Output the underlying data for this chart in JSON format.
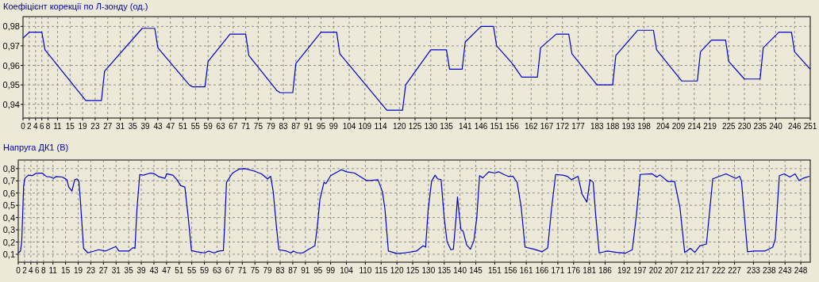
{
  "chart_data": [
    {
      "type": "line",
      "title": "Коефіцієнт корекції по Л-зонду (од.)",
      "grid": true,
      "xlim": [
        0,
        251
      ],
      "ylim": [
        0.933,
        0.985
      ],
      "xticks": [
        0,
        2,
        4,
        6,
        8,
        11,
        15,
        19,
        23,
        27,
        31,
        35,
        39,
        43,
        47,
        51,
        55,
        59,
        63,
        67,
        71,
        75,
        79,
        83,
        87,
        91,
        95,
        99,
        104,
        109,
        114,
        120,
        125,
        130,
        135,
        141,
        146,
        151,
        156,
        162,
        167,
        172,
        177,
        183,
        188,
        193,
        198,
        204,
        209,
        214,
        219,
        225,
        230,
        235,
        240,
        246,
        251
      ],
      "yticks": [
        {
          "value": 0.94,
          "label": "0,94"
        },
        {
          "value": 0.95,
          "label": "0,95"
        },
        {
          "value": 0.96,
          "label": "0,96"
        },
        {
          "value": 0.97,
          "label": "0,97"
        },
        {
          "value": 0.98,
          "label": "0,98"
        }
      ],
      "series": [
        {
          "color": "#0000cc",
          "x": [
            0,
            2,
            6,
            7,
            20,
            25,
            26,
            38,
            42,
            43,
            53,
            54,
            58,
            59,
            66,
            71,
            72,
            81,
            82,
            86,
            87,
            95,
            100,
            101,
            116,
            121,
            122,
            130,
            135,
            136,
            140,
            141,
            146,
            150,
            151,
            156,
            159,
            160,
            164,
            165,
            170,
            174,
            175,
            183,
            188,
            189,
            196,
            201,
            202,
            210,
            215,
            216,
            219.5,
            224,
            225,
            230,
            235,
            236,
            241,
            245,
            246,
            251
          ],
          "values": [
            0.974,
            0.977,
            0.977,
            0.968,
            0.942,
            0.942,
            0.957,
            0.979,
            0.979,
            0.969,
            0.95,
            0.949,
            0.949,
            0.962,
            0.976,
            0.976,
            0.965,
            0.947,
            0.946,
            0.946,
            0.961,
            0.977,
            0.977,
            0.966,
            0.937,
            0.937,
            0.95,
            0.968,
            0.968,
            0.958,
            0.958,
            0.972,
            0.98,
            0.98,
            0.97,
            0.961,
            0.954,
            0.954,
            0.954,
            0.969,
            0.976,
            0.976,
            0.966,
            0.95,
            0.95,
            0.965,
            0.978,
            0.978,
            0.968,
            0.952,
            0.952,
            0.967,
            0.973,
            0.973,
            0.962,
            0.953,
            0.953,
            0.969,
            0.977,
            0.977,
            0.967,
            0.958
          ]
        }
      ]
    },
    {
      "type": "line",
      "title": "Напруга ДК1 (В)",
      "grid": true,
      "xlim": [
        0,
        251
      ],
      "ylim": [
        0.035,
        0.87
      ],
      "xticks": [
        0,
        2,
        4,
        6,
        8,
        11,
        15,
        19,
        23,
        27,
        31,
        35,
        39,
        43,
        47,
        51,
        55,
        59,
        63,
        67,
        71,
        75,
        79,
        83,
        87,
        91,
        95,
        99,
        104,
        110,
        115,
        120,
        125,
        130,
        135,
        140,
        145,
        151,
        156,
        161,
        166,
        171,
        176,
        181,
        186,
        192,
        197,
        202,
        207,
        212,
        217,
        222,
        227,
        233,
        238,
        243,
        248
      ],
      "yticks": [
        {
          "value": 0.1,
          "label": "0,1"
        },
        {
          "value": 0.2,
          "label": "0,2"
        },
        {
          "value": 0.3,
          "label": "0,3"
        },
        {
          "value": 0.4,
          "label": "0,4"
        },
        {
          "value": 0.5,
          "label": "0,5"
        },
        {
          "value": 0.6,
          "label": "0,6"
        },
        {
          "value": 0.7,
          "label": "0,7"
        },
        {
          "value": 0.8,
          "label": "0,8"
        }
      ],
      "series": [
        {
          "color": "#0000cc",
          "x": [
            0,
            0.7,
            1.1,
            1.7,
            2.1,
            3.2,
            4.5,
            5.7,
            7.6,
            8.9,
            10.3,
            11.2,
            12,
            14,
            15.4,
            16,
            17,
            17.9,
            18.6,
            19.2,
            19.7,
            20.7,
            22.1,
            25.5,
            27.6,
            30.9,
            31.9,
            35,
            36.4,
            37,
            37.6,
            38.5,
            39.7,
            41.8,
            43.1,
            44.4,
            46.5,
            47,
            49,
            50.3,
            51.5,
            52.8,
            53.8,
            54.9,
            56.6,
            59,
            60.3,
            62,
            63.7,
            65,
            65.4,
            66,
            67.9,
            70,
            71.9,
            74.6,
            77.1,
            79,
            80,
            80.8,
            81.8,
            82.6,
            85,
            86.4,
            87.2,
            88.5,
            90.2,
            91.8,
            94,
            94.8,
            95.6,
            96.9,
            97.5,
            99,
            102.4,
            104,
            106.6,
            108.2,
            110.3,
            111.6,
            114,
            115.4,
            116.2,
            117.3,
            120,
            122.5,
            126.2,
            128.3,
            129.1,
            129.9,
            131,
            132.1,
            132.9,
            134,
            135,
            135.9,
            137.1,
            137.9,
            138.8,
            139.2,
            139.6,
            140.3,
            141,
            142.1,
            143.3,
            144.4,
            145.3,
            146.2,
            147.2,
            149.1,
            151,
            152.2,
            153.9,
            155.2,
            156.8,
            158.1,
            159.4,
            160.6,
            163.5,
            166,
            167.8,
            169,
            170.3,
            172.6,
            174,
            175.3,
            177.4,
            178.7,
            180.2,
            181.2,
            182.2,
            183,
            184.1,
            186.7,
            189.6,
            192.5,
            194.6,
            195.9,
            197.1,
            200.9,
            202.3,
            203.4,
            205.9,
            208,
            209.7,
            211.2,
            213,
            214.4,
            216,
            218.1,
            220.1,
            221.6,
            224.3,
            227.4,
            228.6,
            229.2,
            231.1,
            233.2,
            236.6,
            239.1,
            239.9,
            241.2,
            242.8,
            244.5,
            246.2,
            247.4,
            248.7,
            250.8
          ],
          "values": [
            0.111,
            0.126,
            0.2,
            0.655,
            0.72,
            0.746,
            0.742,
            0.763,
            0.763,
            0.735,
            0.731,
            0.72,
            0.735,
            0.731,
            0.709,
            0.649,
            0.616,
            0.709,
            0.716,
            0.698,
            0.536,
            0.148,
            0.111,
            0.137,
            0.126,
            0.163,
            0.126,
            0.126,
            0.154,
            0.148,
            0.461,
            0.752,
            0.746,
            0.763,
            0.759,
            0.735,
            0.72,
            0.757,
            0.746,
            0.709,
            0.66,
            0.649,
            0.418,
            0.13,
            0.12,
            0.111,
            0.126,
            0.111,
            0.126,
            0.13,
            0.331,
            0.688,
            0.763,
            0.796,
            0.8,
            0.781,
            0.757,
            0.716,
            0.737,
            0.612,
            0.331,
            0.137,
            0.126,
            0.111,
            0.126,
            0.111,
            0.111,
            0.137,
            0.169,
            0.331,
            0.547,
            0.688,
            0.677,
            0.742,
            0.791,
            0.774,
            0.763,
            0.737,
            0.703,
            0.703,
            0.709,
            0.612,
            0.472,
            0.126,
            0.105,
            0.111,
            0.126,
            0.169,
            0.158,
            0.461,
            0.698,
            0.746,
            0.716,
            0.709,
            0.396,
            0.202,
            0.137,
            0.141,
            0.418,
            0.569,
            0.461,
            0.299,
            0.288,
            0.176,
            0.141,
            0.212,
            0.396,
            0.742,
            0.724,
            0.774,
            0.763,
            0.774,
            0.752,
            0.737,
            0.737,
            0.688,
            0.482,
            0.158,
            0.141,
            0.12,
            0.152,
            0.472,
            0.752,
            0.746,
            0.737,
            0.709,
            0.737,
            0.59,
            0.526,
            0.709,
            0.688,
            0.418,
            0.111,
            0.126,
            0.115,
            0.109,
            0.137,
            0.418,
            0.752,
            0.757,
            0.731,
            0.748,
            0.694,
            0.694,
            0.482,
            0.115,
            0.148,
            0.115,
            0.169,
            0.184,
            0.716,
            0.731,
            0.757,
            0.72,
            0.737,
            0.698,
            0.12,
            0.126,
            0.126,
            0.158,
            0.223,
            0.742,
            0.757,
            0.731,
            0.757,
            0.703,
            0.72,
            0.737
          ]
        }
      ]
    }
  ]
}
